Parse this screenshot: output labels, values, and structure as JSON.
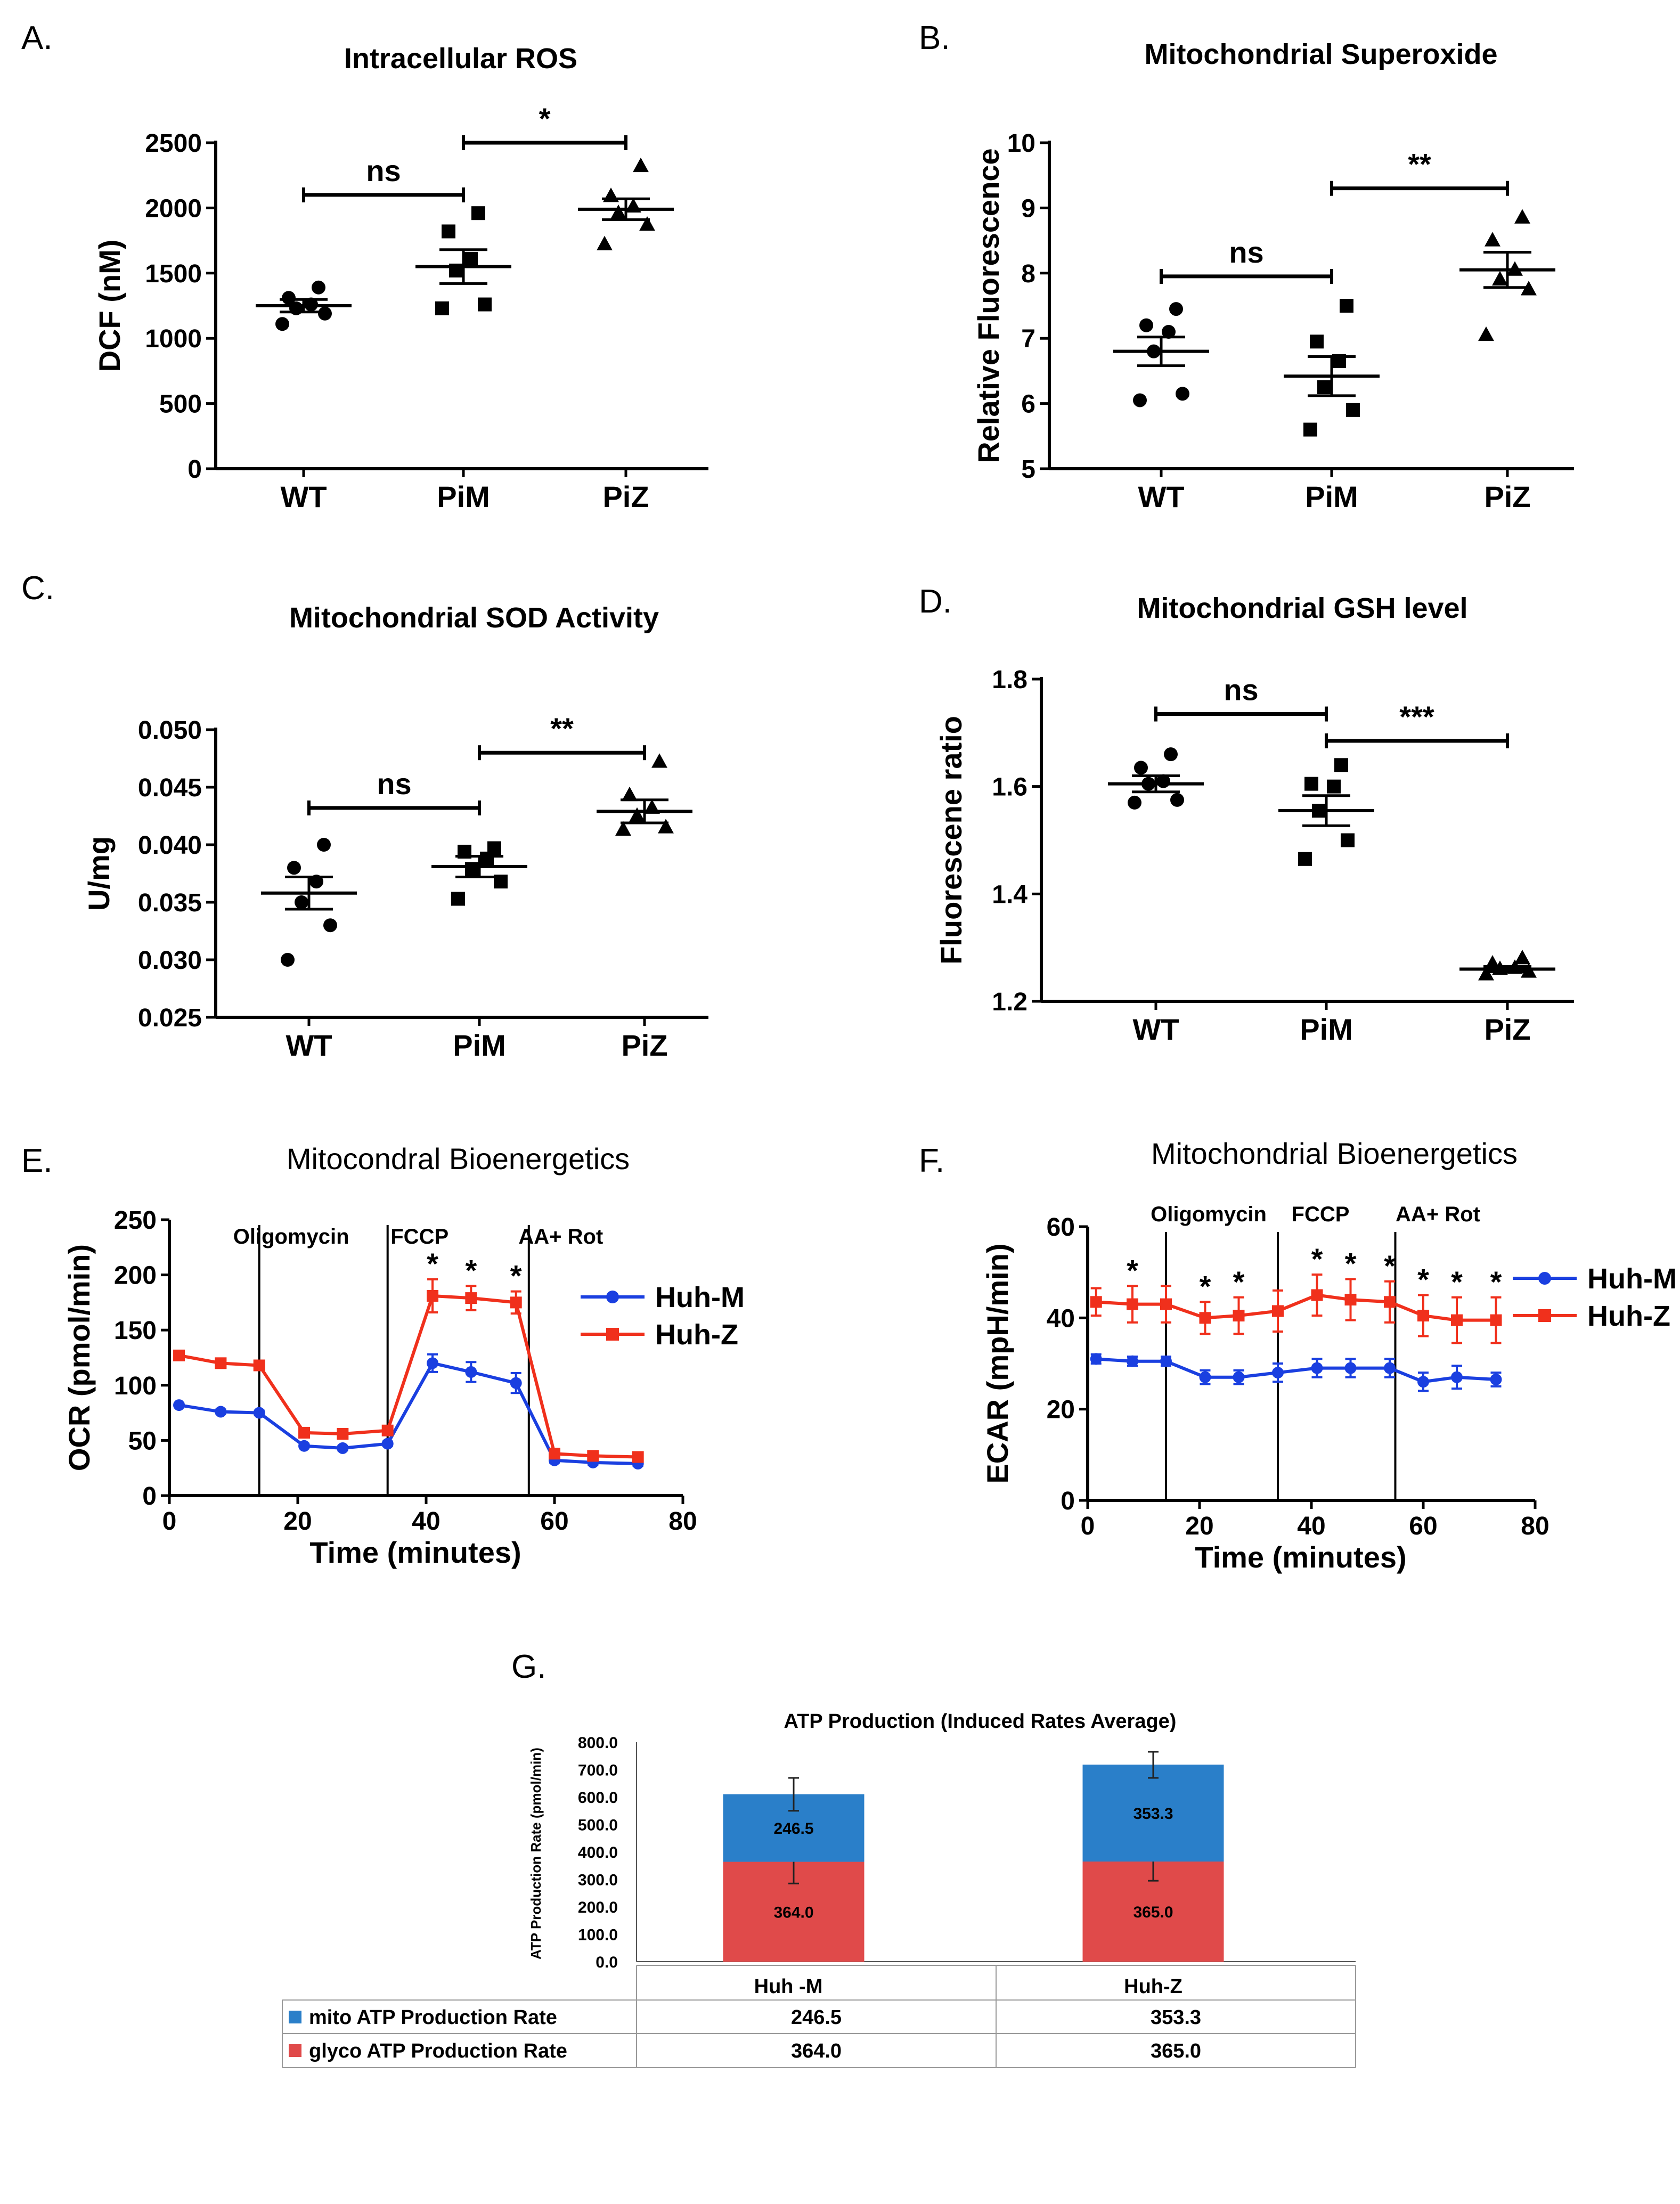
{
  "chart_data": [
    {
      "panel": "A.",
      "type": "scatter",
      "title": "Intracellular ROS",
      "ylabel": "DCF (nM)",
      "ylim": [
        0,
        2500
      ],
      "yticks": [
        0,
        500,
        1000,
        1500,
        2000,
        2500
      ],
      "categories": [
        "WT",
        "PiM",
        "PiZ"
      ],
      "markers": [
        "circle",
        "square",
        "triangle"
      ],
      "points": [
        [
          1110,
          1190,
          1230,
          1260,
          1310,
          1390
        ],
        [
          1230,
          1260,
          1520,
          1610,
          1820,
          1960
        ],
        [
          1720,
          1870,
          1960,
          2010,
          2090,
          2320
        ]
      ],
      "means": [
        1250,
        1550,
        1990
      ],
      "sems": [
        48,
        130,
        80
      ],
      "brackets": [
        {
          "from": "WT",
          "to": "PiM",
          "label": "ns",
          "y": 2100
        },
        {
          "from": "PiM",
          "to": "PiZ",
          "label": "*",
          "y": 2500
        }
      ]
    },
    {
      "panel": "B.",
      "type": "scatter",
      "title": "Mitochondrial Superoxide",
      "ylabel": "Relative Fluorescence",
      "ylim": [
        5,
        10
      ],
      "yticks": [
        5,
        6,
        7,
        8,
        9,
        10
      ],
      "categories": [
        "WT",
        "PiM",
        "PiZ"
      ],
      "markers": [
        "circle",
        "square",
        "triangle"
      ],
      "points": [
        [
          6.05,
          6.15,
          6.8,
          7.1,
          7.2,
          7.45
        ],
        [
          5.6,
          5.9,
          6.25,
          6.65,
          6.95,
          7.5
        ],
        [
          7.05,
          7.75,
          7.9,
          8.05,
          8.5,
          8.85
        ]
      ],
      "means": [
        6.8,
        6.42,
        8.05
      ],
      "sems": [
        0.22,
        0.3,
        0.27
      ],
      "brackets": [
        {
          "from": "WT",
          "to": "PiM",
          "label": "ns",
          "y": 7.95
        },
        {
          "from": "PiM",
          "to": "PiZ",
          "label": "**",
          "y": 9.3
        }
      ]
    },
    {
      "panel": "C.",
      "type": "scatter",
      "title": "Mitochondrial SOD Activity",
      "ylabel": "U/mg",
      "ylim": [
        0.025,
        0.05
      ],
      "yticks": [
        "0.025",
        "0.030",
        "0.035",
        "0.040",
        "0.045",
        "0.050"
      ],
      "categories": [
        "WT",
        "PiM",
        "PiZ"
      ],
      "markers": [
        "circle",
        "square",
        "triangle"
      ],
      "points": [
        [
          0.03,
          0.033,
          0.035,
          0.0368,
          0.038,
          0.04
        ],
        [
          0.0353,
          0.0368,
          0.0379,
          0.0388,
          0.0394,
          0.0397
        ],
        [
          0.0413,
          0.0415,
          0.0425,
          0.0432,
          0.0443,
          0.0472
        ]
      ],
      "means": [
        0.0358,
        0.0381,
        0.0429
      ],
      "sems": [
        0.0014,
        0.0009,
        0.001
      ],
      "brackets": [
        {
          "from": "WT",
          "to": "PiM",
          "label": "ns",
          "y": 0.0432
        },
        {
          "from": "PiM",
          "to": "PiZ",
          "label": "**",
          "y": 0.048
        }
      ]
    },
    {
      "panel": "D.",
      "type": "scatter",
      "title": "Mitochondrial GSH level",
      "ylabel": "Fluorescene ratio",
      "ylim": [
        1.2,
        1.8
      ],
      "yticks": [
        "1.2",
        "1.4",
        "1.6",
        "1.8"
      ],
      "categories": [
        "WT",
        "PiM",
        "PiZ"
      ],
      "markers": [
        "circle",
        "square",
        "triangle"
      ],
      "points": [
        [
          1.57,
          1.575,
          1.605,
          1.61,
          1.635,
          1.66
        ],
        [
          1.465,
          1.5,
          1.555,
          1.6,
          1.605,
          1.64
        ],
        [
          1.25,
          1.255,
          1.26,
          1.262,
          1.27,
          1.28
        ]
      ],
      "means": [
        1.605,
        1.555,
        1.26
      ],
      "sems": [
        0.015,
        0.028,
        0.005
      ],
      "brackets": [
        {
          "from": "WT",
          "to": "PiM",
          "label": "ns",
          "y": 1.735
        },
        {
          "from": "PiM",
          "to": "PiZ",
          "label": "***",
          "y": 1.685
        }
      ]
    },
    {
      "panel": "E.",
      "type": "line",
      "title": "Mitocondral Bioenergetics",
      "xlabel": "Time (minutes)",
      "ylabel": "OCR (pmol/min)",
      "xlim": [
        0,
        80
      ],
      "ylim": [
        0,
        250
      ],
      "xticks": [
        0,
        20,
        40,
        60,
        80
      ],
      "yticks": [
        0,
        50,
        100,
        150,
        200,
        250
      ],
      "phases": [
        {
          "label": "Oligomycin",
          "x": 14
        },
        {
          "label": "FCCP",
          "x": 34
        },
        {
          "label": "AA+ Rot",
          "x": 56
        }
      ],
      "x": [
        1.5,
        8,
        14,
        21,
        27,
        34,
        41,
        47,
        54,
        60,
        66,
        73
      ],
      "series": [
        {
          "name": "Huh-M",
          "color": "#1a3fe0",
          "marker": "circle",
          "values": [
            82,
            76,
            75,
            45,
            43,
            47,
            120,
            112,
            102,
            32,
            30,
            29
          ],
          "errors": [
            2,
            2,
            2,
            2,
            2,
            2,
            8,
            9,
            9,
            2,
            2,
            2
          ]
        },
        {
          "name": "Huh-Z",
          "color": "#f0301c",
          "marker": "square",
          "values": [
            127,
            120,
            118,
            57,
            56,
            59,
            181,
            179,
            175,
            38,
            36,
            35
          ],
          "errors": [
            2,
            2,
            2,
            2,
            2,
            2,
            15,
            11,
            10,
            2,
            2,
            2
          ]
        }
      ],
      "significance": [
        {
          "x": 41,
          "label": "*"
        },
        {
          "x": 47,
          "label": "*"
        },
        {
          "x": 54,
          "label": "*"
        }
      ]
    },
    {
      "panel": "F.",
      "type": "line",
      "title": "Mitochondrial Bioenergetics",
      "xlabel": "Time (minutes)",
      "ylabel": "ECAR (mpH/min)",
      "xlim": [
        0,
        80
      ],
      "ylim": [
        0,
        60
      ],
      "xticks": [
        0,
        20,
        40,
        60,
        80
      ],
      "yticks": [
        0,
        20,
        40,
        60
      ],
      "phases": [
        {
          "label": "Oligomycin",
          "x": 14
        },
        {
          "label": "FCCP",
          "x": 34
        },
        {
          "label": "AA+ Rot",
          "x": 55
        }
      ],
      "x": [
        1.5,
        8,
        14,
        21,
        27,
        34,
        41,
        47,
        54,
        60,
        66,
        73
      ],
      "series": [
        {
          "name": "Huh-M",
          "color": "#1a3fe0",
          "marker": "circle",
          "values": [
            31,
            30.5,
            30.5,
            27,
            27,
            28,
            29,
            29,
            29,
            26,
            27,
            26.5
          ],
          "errors": [
            1,
            1,
            1,
            1.5,
            1.5,
            2,
            2,
            2,
            2,
            2,
            2.5,
            1.5
          ]
        },
        {
          "name": "Huh-Z",
          "color": "#f0301c",
          "marker": "square",
          "values": [
            43.5,
            43,
            43,
            40,
            40.5,
            41.5,
            45,
            44,
            43.5,
            40.5,
            39.5,
            39.5
          ],
          "errors": [
            3,
            4,
            4,
            3.5,
            4,
            4.5,
            4.5,
            4.5,
            4.5,
            4.5,
            5,
            5
          ]
        }
      ],
      "significance": [
        {
          "x": 8,
          "label": "*"
        },
        {
          "x": 21,
          "label": "*"
        },
        {
          "x": 27,
          "label": "*"
        },
        {
          "x": 41,
          "label": "*"
        },
        {
          "x": 47,
          "label": "*"
        },
        {
          "x": 54,
          "label": "*"
        },
        {
          "x": 60,
          "label": "*"
        },
        {
          "x": 66,
          "label": "*"
        },
        {
          "x": 73,
          "label": "*"
        }
      ]
    },
    {
      "panel": "G.",
      "type": "bar",
      "stacked": true,
      "title": "ATP Production (Induced Rates Average)",
      "ylabel": "ATP Production Rate (pmol/min)",
      "ylim": [
        0,
        800
      ],
      "yticks": [
        "0.0",
        "100.0",
        "200.0",
        "300.0",
        "400.0",
        "500.0",
        "600.0",
        "700.0",
        "800.0"
      ],
      "categories": [
        "Huh -M",
        "Huh-Z"
      ],
      "series": [
        {
          "name": "glyco ATP Production Rate",
          "color": "#e04a4a",
          "values": [
            364.0,
            365.0
          ],
          "labels": [
            "364.0",
            "365.0"
          ],
          "err_low": [
            285,
            295
          ],
          "err_high": [
            442,
            435
          ]
        },
        {
          "name": "mito ATP Production Rate",
          "color": "#2a7fc9",
          "values": [
            246.5,
            353.3
          ],
          "labels": [
            "246.5",
            "353.3"
          ],
          "err_low": [
            550,
            670
          ],
          "err_high": [
            670,
            765
          ]
        }
      ],
      "table": [
        {
          "name": "mito ATP Production Rate",
          "values": [
            "246.5",
            "353.3"
          ]
        },
        {
          "name": "glyco ATP Production Rate",
          "values": [
            "364.0",
            "365.0"
          ]
        }
      ]
    }
  ]
}
